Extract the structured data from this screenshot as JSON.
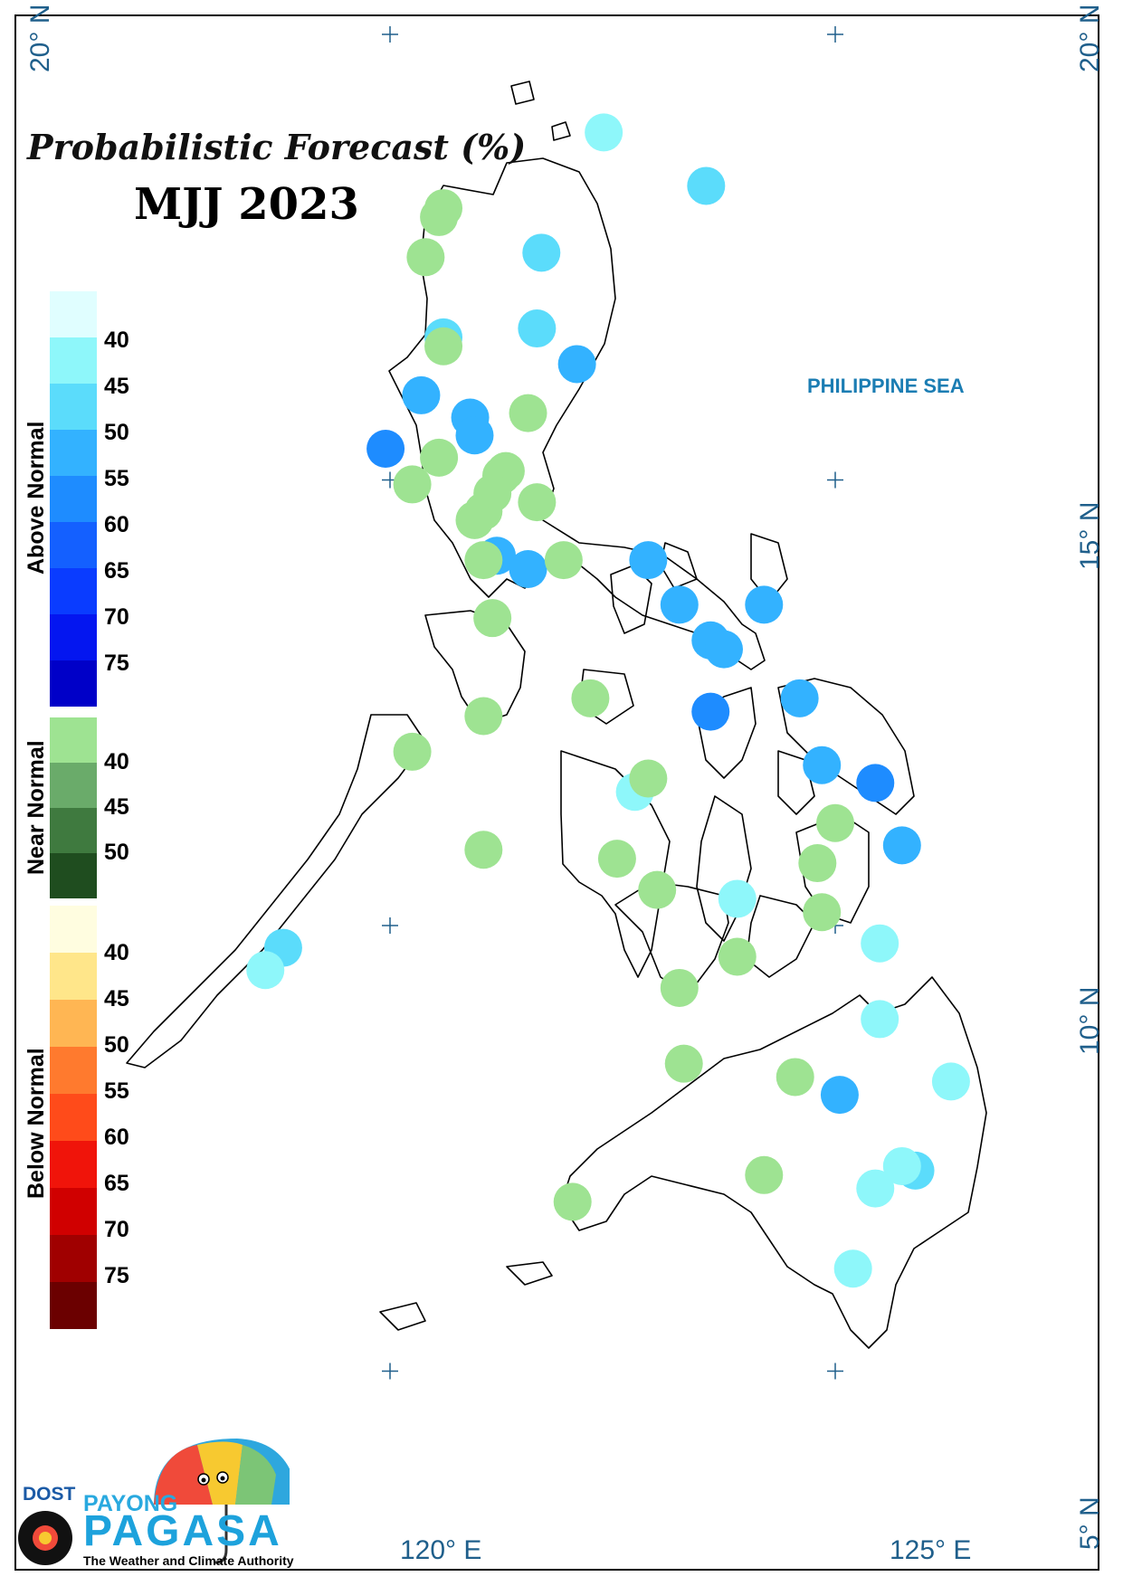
{
  "title": "Probabilistic Forecast (%)",
  "period": "MJJ 2023",
  "sea_label": "PHILIPPINE SEA",
  "coordinates": {
    "lon_120": "120° E",
    "lon_125": "125° E",
    "lat_20_left": "20° N",
    "lat_20_right": "20° N",
    "lat_15": "15° N",
    "lat_10": "10° N",
    "lat_5": "5° N"
  },
  "legend": {
    "above_normal": {
      "label": "Above Normal",
      "ticks": [
        "40",
        "45",
        "50",
        "55",
        "60",
        "65",
        "70",
        "75"
      ],
      "colors": [
        "#e0feff",
        "#8ef7fa",
        "#5bdcfb",
        "#33b2ff",
        "#1e8cff",
        "#1460ff",
        "#0a3cff",
        "#0416f0",
        "#0000c8"
      ]
    },
    "near_normal": {
      "label": "Near Normal",
      "ticks": [
        "40",
        "45",
        "50"
      ],
      "colors": [
        "#9ee392",
        "#6aab6a",
        "#3f7a3f",
        "#1f4d1f"
      ]
    },
    "below_normal": {
      "label": "Below Normal",
      "ticks": [
        "40",
        "45",
        "50",
        "55",
        "60",
        "65",
        "70",
        "75"
      ],
      "colors": [
        "#fffde0",
        "#ffe68a",
        "#ffb653",
        "#ff7a2e",
        "#ff4b1a",
        "#f0140a",
        "#d00000",
        "#a00000",
        "#6b0000"
      ]
    }
  },
  "logo": {
    "dost": "DOST",
    "payong": "PAYONG",
    "pagasa": "PAGASA",
    "tagline": "The Weather and Climate Authority"
  },
  "stations": [
    {
      "lon": 123.55,
      "lat": 18.3,
      "cat": "above",
      "pct": 45
    },
    {
      "lon": 122.4,
      "lat": 18.9,
      "cat": "above",
      "pct": 40
    },
    {
      "lon": 120.6,
      "lat": 18.05,
      "cat": "near",
      "pct": 40
    },
    {
      "lon": 120.55,
      "lat": 17.95,
      "cat": "near",
      "pct": 40
    },
    {
      "lon": 120.4,
      "lat": 17.5,
      "cat": "near",
      "pct": 40
    },
    {
      "lon": 121.7,
      "lat": 17.55,
      "cat": "above",
      "pct": 45
    },
    {
      "lon": 121.65,
      "lat": 16.7,
      "cat": "above",
      "pct": 45
    },
    {
      "lon": 120.6,
      "lat": 16.6,
      "cat": "above",
      "pct": 45
    },
    {
      "lon": 120.6,
      "lat": 16.5,
      "cat": "near",
      "pct": 40
    },
    {
      "lon": 122.1,
      "lat": 16.3,
      "cat": "above",
      "pct": 50
    },
    {
      "lon": 120.35,
      "lat": 15.95,
      "cat": "above",
      "pct": 50
    },
    {
      "lon": 120.9,
      "lat": 15.7,
      "cat": "above",
      "pct": 50
    },
    {
      "lon": 120.95,
      "lat": 15.5,
      "cat": "above",
      "pct": 50
    },
    {
      "lon": 121.55,
      "lat": 15.75,
      "cat": "near",
      "pct": 40
    },
    {
      "lon": 119.95,
      "lat": 15.35,
      "cat": "above",
      "pct": 55
    },
    {
      "lon": 120.55,
      "lat": 15.25,
      "cat": "near",
      "pct": 40
    },
    {
      "lon": 121.25,
      "lat": 15.05,
      "cat": "near",
      "pct": 40
    },
    {
      "lon": 121.3,
      "lat": 15.1,
      "cat": "near",
      "pct": 40
    },
    {
      "lon": 121.15,
      "lat": 14.85,
      "cat": "near",
      "pct": 40
    },
    {
      "lon": 121.05,
      "lat": 14.65,
      "cat": "near",
      "pct": 40
    },
    {
      "lon": 120.95,
      "lat": 14.55,
      "cat": "near",
      "pct": 40
    },
    {
      "lon": 120.25,
      "lat": 14.95,
      "cat": "near",
      "pct": 40
    },
    {
      "lon": 121.65,
      "lat": 14.75,
      "cat": "near",
      "pct": 40
    },
    {
      "lon": 121.2,
      "lat": 14.15,
      "cat": "above",
      "pct": 50
    },
    {
      "lon": 121.05,
      "lat": 14.1,
      "cat": "near",
      "pct": 40
    },
    {
      "lon": 121.55,
      "lat": 14.0,
      "cat": "above",
      "pct": 50
    },
    {
      "lon": 121.95,
      "lat": 14.1,
      "cat": "near",
      "pct": 40
    },
    {
      "lon": 122.9,
      "lat": 14.1,
      "cat": "above",
      "pct": 50
    },
    {
      "lon": 121.15,
      "lat": 13.45,
      "cat": "near",
      "pct": 40
    },
    {
      "lon": 123.25,
      "lat": 13.6,
      "cat": "above",
      "pct": 50
    },
    {
      "lon": 124.2,
      "lat": 13.6,
      "cat": "above",
      "pct": 50
    },
    {
      "lon": 123.6,
      "lat": 13.2,
      "cat": "above",
      "pct": 50
    },
    {
      "lon": 123.75,
      "lat": 13.1,
      "cat": "above",
      "pct": 50
    },
    {
      "lon": 121.05,
      "lat": 12.35,
      "cat": "near",
      "pct": 40
    },
    {
      "lon": 122.25,
      "lat": 12.55,
      "cat": "near",
      "pct": 40
    },
    {
      "lon": 123.6,
      "lat": 12.4,
      "cat": "above",
      "pct": 55
    },
    {
      "lon": 124.6,
      "lat": 12.55,
      "cat": "above",
      "pct": 50
    },
    {
      "lon": 120.25,
      "lat": 11.95,
      "cat": "near",
      "pct": 40
    },
    {
      "lon": 124.85,
      "lat": 11.8,
      "cat": "above",
      "pct": 50
    },
    {
      "lon": 125.45,
      "lat": 11.6,
      "cat": "above",
      "pct": 55
    },
    {
      "lon": 122.75,
      "lat": 11.5,
      "cat": "above",
      "pct": 40
    },
    {
      "lon": 122.9,
      "lat": 11.65,
      "cat": "near",
      "pct": 40
    },
    {
      "lon": 125.0,
      "lat": 11.15,
      "cat": "near",
      "pct": 40
    },
    {
      "lon": 125.75,
      "lat": 10.9,
      "cat": "above",
      "pct": 50
    },
    {
      "lon": 121.05,
      "lat": 10.85,
      "cat": "near",
      "pct": 40
    },
    {
      "lon": 122.55,
      "lat": 10.75,
      "cat": "near",
      "pct": 40
    },
    {
      "lon": 124.8,
      "lat": 10.7,
      "cat": "near",
      "pct": 40
    },
    {
      "lon": 123.0,
      "lat": 10.4,
      "cat": "near",
      "pct": 40
    },
    {
      "lon": 123.9,
      "lat": 10.3,
      "cat": "above",
      "pct": 40
    },
    {
      "lon": 124.85,
      "lat": 10.15,
      "cat": "near",
      "pct": 40
    },
    {
      "lon": 118.8,
      "lat": 9.75,
      "cat": "above",
      "pct": 45
    },
    {
      "lon": 118.6,
      "lat": 9.5,
      "cat": "above",
      "pct": 40
    },
    {
      "lon": 123.9,
      "lat": 9.65,
      "cat": "near",
      "pct": 40
    },
    {
      "lon": 125.5,
      "lat": 9.8,
      "cat": "above",
      "pct": 40
    },
    {
      "lon": 123.25,
      "lat": 9.3,
      "cat": "near",
      "pct": 40
    },
    {
      "lon": 125.5,
      "lat": 8.95,
      "cat": "above",
      "pct": 40
    },
    {
      "lon": 123.3,
      "lat": 8.45,
      "cat": "near",
      "pct": 40
    },
    {
      "lon": 124.55,
      "lat": 8.3,
      "cat": "near",
      "pct": 40
    },
    {
      "lon": 125.05,
      "lat": 8.1,
      "cat": "above",
      "pct": 50
    },
    {
      "lon": 126.3,
      "lat": 8.25,
      "cat": "above",
      "pct": 40
    },
    {
      "lon": 125.9,
      "lat": 7.25,
      "cat": "above",
      "pct": 45
    },
    {
      "lon": 125.75,
      "lat": 7.3,
      "cat": "above",
      "pct": 40
    },
    {
      "lon": 125.45,
      "lat": 7.05,
      "cat": "above",
      "pct": 40
    },
    {
      "lon": 124.2,
      "lat": 7.2,
      "cat": "near",
      "pct": 40
    },
    {
      "lon": 122.05,
      "lat": 6.9,
      "cat": "near",
      "pct": 40
    },
    {
      "lon": 125.2,
      "lat": 6.15,
      "cat": "above",
      "pct": 40
    }
  ]
}
